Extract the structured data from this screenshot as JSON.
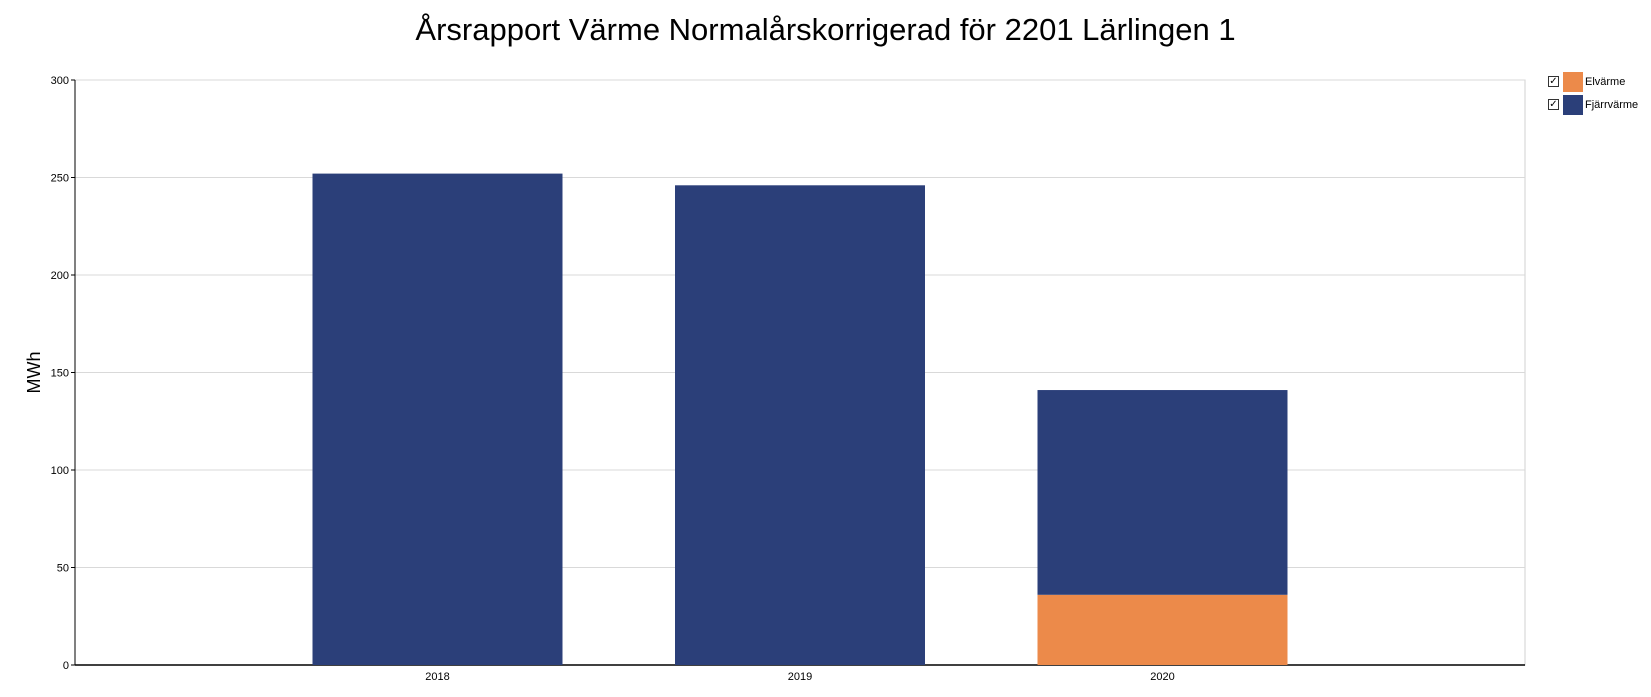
{
  "chart_data": {
    "type": "bar",
    "stacked": true,
    "title": "Årsrapport Värme Normalårskorrigerad för 2201 Lärlingen 1",
    "xlabel": "",
    "ylabel": "MWh",
    "categories": [
      "2018",
      "2019",
      "2020"
    ],
    "series": [
      {
        "name": "Elvärme",
        "color": "#EC8A4A",
        "values": [
          0,
          0,
          36
        ]
      },
      {
        "name": "Fjärrvärme",
        "color": "#2B3F79",
        "values": [
          252,
          246,
          105
        ]
      }
    ],
    "ylim": [
      0,
      300
    ],
    "yticks": [
      "0",
      "50",
      "100",
      "150",
      "200",
      "250",
      "300"
    ],
    "grid": true,
    "legend_position": "right-top"
  },
  "legend": {
    "items": [
      {
        "label": "Elvärme",
        "checked_glyph": "☑",
        "color": "#EC8A4A"
      },
      {
        "label": "Fjärrvärme",
        "checked_glyph": "☑",
        "color": "#2B3F79"
      }
    ]
  }
}
